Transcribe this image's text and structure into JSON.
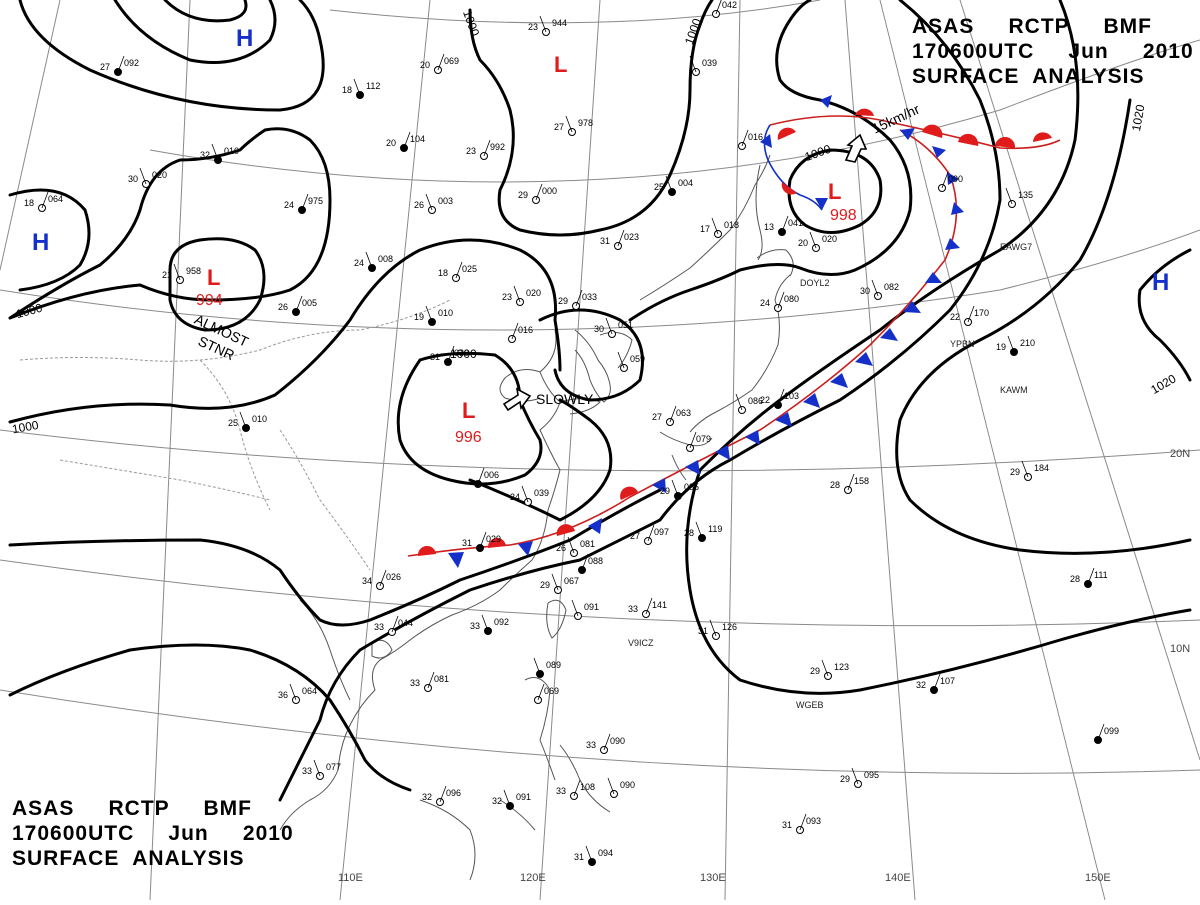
{
  "header": {
    "line1": "ASAS     RCTP     BMF",
    "line2": "170600UTC     Jun     2010",
    "line3": "SURFACE  ANALYSIS"
  },
  "footer": {
    "line1": "ASAS     RCTP     BMF",
    "line2": "170600UTC     Jun     2010",
    "line3": "SURFACE  ANALYSIS"
  },
  "colors": {
    "low": "#e01b1b",
    "high": "#1530c8",
    "isobar": "#000000",
    "coast": "#555555",
    "grid": "#8a8a8a"
  },
  "isobar_labels": [
    "1000",
    "1000",
    "1000",
    "1000",
    "1000",
    "1000",
    "1020",
    "1020"
  ],
  "pressure_centers": [
    {
      "type": "H",
      "value": ""
    },
    {
      "type": "H",
      "value": ""
    },
    {
      "type": "H",
      "value": ""
    },
    {
      "type": "L",
      "value": ""
    },
    {
      "type": "L",
      "value": "994"
    },
    {
      "type": "L",
      "value": "996"
    },
    {
      "type": "L",
      "value": "998"
    }
  ],
  "annotations": {
    "almost_stnr": [
      "ALMOST",
      "STNR"
    ],
    "slowly": "SLOWLY",
    "speed": "15km/hr"
  },
  "grid_labels": {
    "lon": [
      "110E",
      "120E",
      "130E",
      "140E",
      "150E"
    ],
    "lat": [
      "20N",
      "10N"
    ]
  },
  "station_ids": [
    "DOYL2",
    "WGEB",
    "V9ICZ",
    "KAWM",
    "YPBN",
    "EAWG7"
  ],
  "stations": [
    {
      "t": "27",
      "p": "092"
    },
    {
      "t": "23",
      "p": "944"
    },
    {
      "t": "",
      "p": "042"
    },
    {
      "t": "18",
      "p": "112"
    },
    {
      "t": "20",
      "p": "069"
    },
    {
      "t": "",
      "p": "039"
    },
    {
      "t": "20",
      "p": "104"
    },
    {
      "t": "27",
      "p": "978"
    },
    {
      "t": "",
      "p": "016"
    },
    {
      "t": "32",
      "p": "010"
    },
    {
      "t": "23",
      "p": "992"
    },
    {
      "t": "30",
      "p": "020"
    },
    {
      "t": "24",
      "p": "975"
    },
    {
      "t": "26",
      "p": "003"
    },
    {
      "t": "29",
      "p": "000"
    },
    {
      "t": "25",
      "p": "004"
    },
    {
      "t": "18",
      "p": "064"
    },
    {
      "t": "17",
      "p": "018"
    },
    {
      "t": "13",
      "p": "041"
    },
    {
      "t": "20",
      "p": "020"
    },
    {
      "t": "31",
      "p": "023"
    },
    {
      "t": "24",
      "p": "008"
    },
    {
      "t": "18",
      "p": "025"
    },
    {
      "t": "21",
      "p": "958"
    },
    {
      "t": "26",
      "p": "005"
    },
    {
      "t": "23",
      "p": "020"
    },
    {
      "t": "29",
      "p": "033"
    },
    {
      "t": "19",
      "p": "010"
    },
    {
      "t": "",
      "p": "016"
    },
    {
      "t": "30",
      "p": "051"
    },
    {
      "t": "31",
      "p": "030"
    },
    {
      "t": "",
      "p": "059"
    },
    {
      "t": "24",
      "p": "080"
    },
    {
      "t": "25",
      "p": "010"
    },
    {
      "t": "27",
      "p": "063"
    },
    {
      "t": "",
      "p": "086"
    },
    {
      "t": "22",
      "p": "103"
    },
    {
      "t": "30",
      "p": "082"
    },
    {
      "t": "22",
      "p": "170"
    },
    {
      "t": "19",
      "p": "210"
    },
    {
      "t": "",
      "p": "090"
    },
    {
      "t": "",
      "p": "135"
    },
    {
      "t": "",
      "p": "006"
    },
    {
      "t": "24",
      "p": "039"
    },
    {
      "t": "",
      "p": "079"
    },
    {
      "t": "29",
      "p": "085"
    },
    {
      "t": "28",
      "p": "158"
    },
    {
      "t": "29",
      "p": "184"
    },
    {
      "t": "31",
      "p": "029"
    },
    {
      "t": "26",
      "p": "081"
    },
    {
      "t": "27",
      "p": "097"
    },
    {
      "t": "28",
      "p": "119"
    },
    {
      "t": "34",
      "p": "026"
    },
    {
      "t": "29",
      "p": "067"
    },
    {
      "t": "",
      "p": "088"
    },
    {
      "t": "",
      "p": "091"
    },
    {
      "t": "33",
      "p": "044"
    },
    {
      "t": "33",
      "p": "092"
    },
    {
      "t": "33",
      "p": "141"
    },
    {
      "t": "31",
      "p": "126"
    },
    {
      "t": "28",
      "p": "111"
    },
    {
      "t": "36",
      "p": "064"
    },
    {
      "t": "33",
      "p": "081"
    },
    {
      "t": "",
      "p": "089"
    },
    {
      "t": "",
      "p": "069"
    },
    {
      "t": "29",
      "p": "123"
    },
    {
      "t": "32",
      "p": "107"
    },
    {
      "t": "33",
      "p": "077"
    },
    {
      "t": "33",
      "p": "090"
    },
    {
      "t": "32",
      "p": "091"
    },
    {
      "t": "33",
      "p": "108"
    },
    {
      "t": "",
      "p": "090"
    },
    {
      "t": "",
      "p": "099"
    },
    {
      "t": "29",
      "p": "095"
    },
    {
      "t": "31",
      "p": "093"
    },
    {
      "t": "31",
      "p": "094"
    },
    {
      "t": "32",
      "p": "096"
    }
  ]
}
